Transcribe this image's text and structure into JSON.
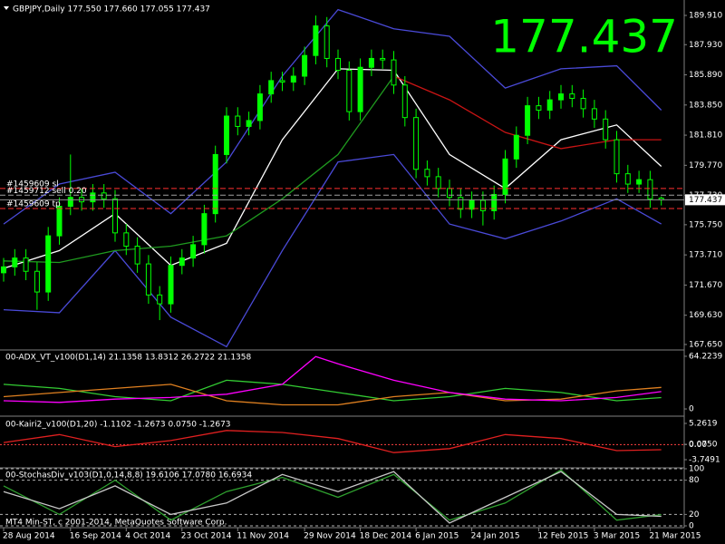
{
  "header": "GBPJPY,Daily  177.550 177.660 177.055 177.437",
  "last_price_label": "177.437",
  "chart_data": [
    {
      "type": "candlestick",
      "categories": [
        "28 Aug 2014",
        null,
        null,
        null,
        null,
        null,
        "16 Sep 2014",
        null,
        null,
        null,
        null,
        "4 Oct 2014",
        null,
        null,
        null,
        null,
        "23 Oct 2014",
        null,
        null,
        null,
        null,
        "11 Nov 2014",
        null,
        null,
        null,
        null,
        null,
        "29 Nov 2014",
        null,
        null,
        null,
        null,
        "18 Dec 2014",
        null,
        null,
        null,
        null,
        "6 Jan 2015",
        null,
        null,
        null,
        null,
        "24 Jan 2015",
        null,
        null,
        null,
        null,
        null,
        "12 Feb 2015",
        null,
        null,
        null,
        null,
        "3 Mar 2015",
        null,
        null,
        null,
        null,
        "21 Mar 2015",
        null
      ],
      "open": [
        172.5,
        172.9,
        173.5,
        172.6,
        171.2,
        175.0,
        177.0,
        177.6,
        177.3,
        177.9,
        177.5,
        175.2,
        174.3,
        173.1,
        171.0,
        170.4,
        173.0,
        173.5,
        174.4,
        176.5,
        180.5,
        183.1,
        182.4,
        182.8,
        184.6,
        185.5,
        185.4,
        185.8,
        187.2,
        189.2,
        187.0,
        186.2,
        183.4,
        186.4,
        187.0,
        186.9,
        185.2,
        183.0,
        179.5,
        179.0,
        178.2,
        177.6,
        176.8,
        177.4,
        176.7,
        177.8,
        180.2,
        181.8,
        183.8,
        183.5,
        184.2,
        184.6,
        184.3,
        183.6,
        182.9,
        181.5,
        179.2,
        178.5,
        178.8,
        177.55
      ],
      "high": [
        173.5,
        174.1,
        174.1,
        173.2,
        175.6,
        177.6,
        180.5,
        178.2,
        178.5,
        178.5,
        178.1,
        175.8,
        174.9,
        173.7,
        171.6,
        173.6,
        174.1,
        175.0,
        177.1,
        181.1,
        183.7,
        183.7,
        183.4,
        185.2,
        186.1,
        186.1,
        186.4,
        187.8,
        189.9,
        189.8,
        187.6,
        186.8,
        187.0,
        187.6,
        187.6,
        187.5,
        185.8,
        183.6,
        180.1,
        179.6,
        178.8,
        178.2,
        178.0,
        178.0,
        178.4,
        180.8,
        182.4,
        184.4,
        184.4,
        184.8,
        185.2,
        185.2,
        184.9,
        184.2,
        183.5,
        182.1,
        179.8,
        179.4,
        179.4,
        177.66
      ],
      "low": [
        171.9,
        172.3,
        172.0,
        170.0,
        170.6,
        174.4,
        176.4,
        176.7,
        176.7,
        176.9,
        174.6,
        173.7,
        172.5,
        170.4,
        169.3,
        169.8,
        172.4,
        172.9,
        173.8,
        175.9,
        179.9,
        181.8,
        181.8,
        182.2,
        184.0,
        184.8,
        184.8,
        185.2,
        186.6,
        186.4,
        185.6,
        182.8,
        182.8,
        185.8,
        186.3,
        184.6,
        182.4,
        178.9,
        178.4,
        177.6,
        177.0,
        176.2,
        176.2,
        175.7,
        176.1,
        177.2,
        179.6,
        181.2,
        182.9,
        182.9,
        183.6,
        183.7,
        183.0,
        182.3,
        180.9,
        178.6,
        177.9,
        177.9,
        176.9,
        177.055
      ],
      "close": [
        172.9,
        173.5,
        172.6,
        171.2,
        175.0,
        177.0,
        177.6,
        177.3,
        177.9,
        177.5,
        175.2,
        174.3,
        173.1,
        171.0,
        170.4,
        173.0,
        173.5,
        174.4,
        176.5,
        180.5,
        183.1,
        182.4,
        182.8,
        184.6,
        185.5,
        185.4,
        185.8,
        187.2,
        189.2,
        187.0,
        186.2,
        183.4,
        186.4,
        187.0,
        186.9,
        185.2,
        183.0,
        179.5,
        179.0,
        178.2,
        177.6,
        176.8,
        177.4,
        176.7,
        177.8,
        180.2,
        181.8,
        183.8,
        183.5,
        184.2,
        184.6,
        184.3,
        183.6,
        182.9,
        181.5,
        179.2,
        178.5,
        178.8,
        177.5,
        177.437
      ],
      "color": "#00ff00",
      "overlays": [
        {
          "color": "#4a4ad8",
          "x": [
            0,
            5,
            10,
            15,
            20,
            25,
            30,
            35,
            40,
            45,
            50,
            55,
            59
          ],
          "values": [
            175.8,
            178.5,
            179.3,
            176.5,
            180.0,
            185.8,
            190.3,
            189.0,
            188.5,
            185.0,
            186.3,
            186.5,
            183.5
          ]
        },
        {
          "color": "#4a4ad8",
          "x": [
            0,
            5,
            10,
            15,
            20,
            25,
            30,
            35,
            40,
            45,
            50,
            55,
            59
          ],
          "values": [
            170.0,
            169.8,
            174.0,
            169.5,
            167.5,
            174.0,
            180.0,
            180.5,
            175.8,
            174.8,
            176.0,
            177.5,
            175.8
          ]
        },
        {
          "color": "#ffffff",
          "x": [
            0,
            5,
            10,
            15,
            20,
            25,
            30,
            35,
            40,
            45,
            50,
            55,
            59
          ],
          "values": [
            172.8,
            174.0,
            176.5,
            173.0,
            174.5,
            181.5,
            186.3,
            186.2,
            180.5,
            178.2,
            181.5,
            182.5,
            179.7
          ]
        },
        {
          "color": "#1f9a1f",
          "x": [
            0,
            5,
            10,
            15,
            20,
            25,
            30,
            35
          ],
          "values": [
            173.3,
            173.2,
            174.0,
            174.3,
            175.0,
            177.5,
            180.5,
            185.8
          ]
        },
        {
          "color": "#c81414",
          "x": [
            35,
            40,
            45,
            50,
            55,
            59
          ],
          "values": [
            185.8,
            184.2,
            182.0,
            180.9,
            181.5,
            181.5
          ]
        }
      ],
      "orders": [
        {
          "label": "#1459609 sl",
          "price": 178.2,
          "color": "#ff3030"
        },
        {
          "label": "#1459712 sell 0.20",
          "price": 177.75,
          "color": "#a0a0a0"
        },
        {
          "label": "#1459609 tp",
          "price": 176.85,
          "color": "#ff3030"
        }
      ],
      "ylim": [
        167.34,
        190.83
      ],
      "yticks": [
        {
          "value": 189.91,
          "label": "189.910"
        },
        {
          "value": 187.93,
          "label": "187.930"
        },
        {
          "value": 185.89,
          "label": "185.890"
        },
        {
          "value": 183.85,
          "label": "183.850"
        },
        {
          "value": 181.81,
          "label": "181.810"
        },
        {
          "value": 179.77,
          "label": "179.770"
        },
        {
          "value": 177.73,
          "label": "177.730"
        },
        {
          "value": 175.75,
          "label": "175.750"
        },
        {
          "value": 173.71,
          "label": "173.710"
        },
        {
          "value": 171.67,
          "label": "171.670"
        },
        {
          "value": 169.63,
          "label": "169.630"
        },
        {
          "value": 167.65,
          "label": "167.650"
        }
      ],
      "grid": false
    },
    {
      "type": "line",
      "title": "00-ADX_VT_v100(D1,14) 21.1358 13.8312 26.2722 21.1358",
      "series": [
        {
          "color": "#33cc33",
          "x": [
            0,
            5,
            10,
            15,
            20,
            25,
            30,
            35,
            40,
            45,
            50,
            55,
            59
          ],
          "values": [
            30,
            25,
            15,
            10,
            35,
            30,
            20,
            10,
            15,
            25,
            20,
            10,
            13.8312
          ]
        },
        {
          "color": "#e08020",
          "x": [
            0,
            5,
            10,
            15,
            20,
            25,
            30,
            35,
            40,
            45,
            50,
            55,
            59
          ],
          "values": [
            15,
            20,
            25,
            30,
            10,
            5,
            5,
            15,
            20,
            10,
            12,
            22,
            26.2722
          ]
        },
        {
          "color": "#ff00ff",
          "x": [
            0,
            5,
            10,
            15,
            20,
            25,
            28,
            30,
            35,
            40,
            45,
            50,
            55,
            59
          ],
          "values": [
            10,
            8,
            12,
            14,
            18,
            30,
            64,
            55,
            35,
            20,
            12,
            10,
            14,
            21.1358
          ]
        }
      ],
      "ylim": [
        -7.7,
        70.8
      ],
      "yticks": [
        64.2239,
        0
      ],
      "grid": false
    },
    {
      "type": "line",
      "title": "00-Kairi2_v100(D1,20) -1.1102 -1.2673 0.0750 -1.2673",
      "series": [
        {
          "color": "#e02020",
          "x": [
            0,
            5,
            10,
            15,
            20,
            25,
            30,
            35,
            40,
            45,
            50,
            55,
            59
          ],
          "values": [
            0.5,
            2.5,
            -0.5,
            1,
            3.5,
            3.0,
            1.5,
            -2,
            -1,
            2.5,
            1.5,
            -1.5,
            -1.2673
          ]
        }
      ],
      "ylim": [
        -5.55,
        6.61
      ],
      "yticks": [
        5.2619,
        {
          "value": 0.075,
          "label": "0.0750"
        },
        {
          "value": 0,
          "label": "0.00"
        },
        -3.7491
      ],
      "grid": false,
      "zero_line": true
    },
    {
      "type": "line",
      "title": "00-StochasDiv_v103(D1,0,14,8,8) 19.6106 17.0780 16.6934",
      "note": "MT4 Min-ST, c 2001-2014, MetaQuotes Software Corp.",
      "series": [
        {
          "color": "#2fa02f",
          "x": [
            0,
            5,
            10,
            15,
            20,
            25,
            30,
            35,
            40,
            45,
            50,
            55,
            59
          ],
          "values": [
            70,
            20,
            80,
            10,
            60,
            85,
            50,
            90,
            10,
            40,
            98,
            10,
            19.6106
          ]
        },
        {
          "color": "#c8c8c8",
          "x": [
            0,
            5,
            10,
            15,
            20,
            25,
            30,
            35,
            40,
            45,
            50,
            55,
            59
          ],
          "values": [
            60,
            30,
            70,
            20,
            40,
            90,
            60,
            95,
            5,
            50,
            95,
            20,
            16.6934
          ]
        }
      ],
      "ylim": [
        0,
        100
      ],
      "yticks": [
        100,
        80,
        20,
        0
      ],
      "grid": true
    }
  ]
}
